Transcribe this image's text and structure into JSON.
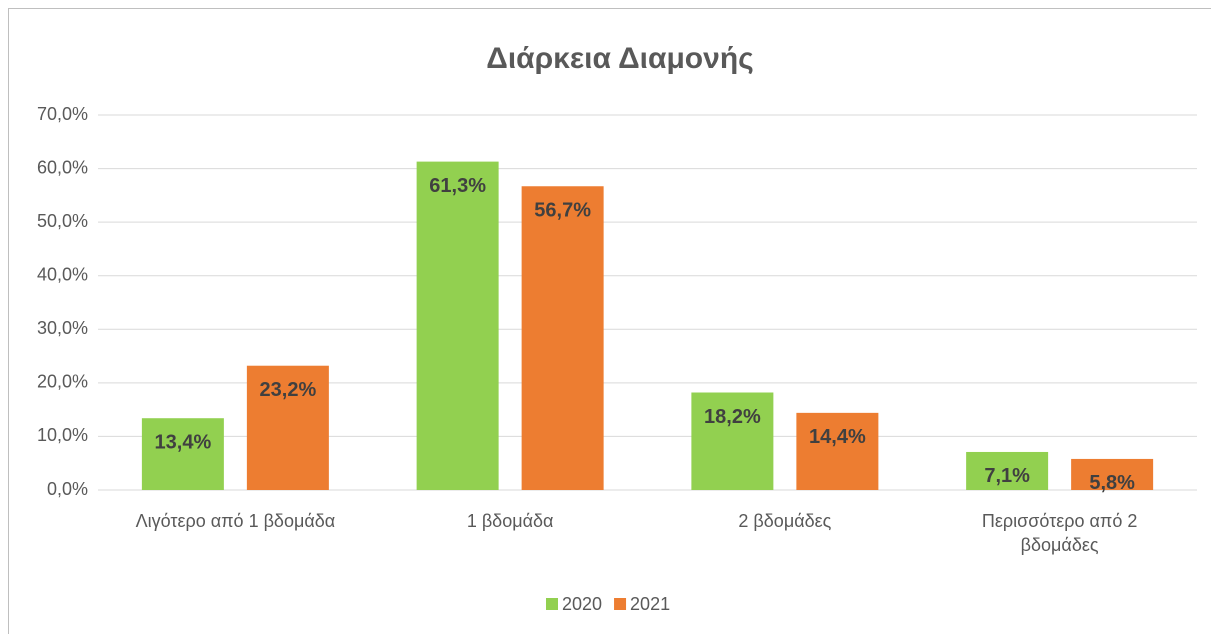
{
  "chart_data": {
    "type": "bar",
    "title": "Διάρκεια Διαμονής",
    "categories": [
      "Λιγότερο από 1 βδομάδα",
      "1 βδομάδα",
      "2 βδομάδες",
      "Περισσότερο από 2 βδομάδες"
    ],
    "series": [
      {
        "name": "2020",
        "color": "#92d050",
        "values": [
          13.4,
          61.3,
          18.2,
          7.1
        ],
        "value_labels": [
          "13,4%",
          "61,3%",
          "18,2%",
          "7,1%"
        ]
      },
      {
        "name": "2021",
        "color": "#ed7d31",
        "values": [
          23.2,
          56.7,
          14.4,
          5.8
        ],
        "value_labels": [
          "23,2%",
          "56,7%",
          "14,4%",
          "5,8%"
        ]
      }
    ],
    "ylim": [
      0,
      70
    ],
    "yticks": [
      {
        "value": 0,
        "label": "0,0%"
      },
      {
        "value": 10,
        "label": "10,0%"
      },
      {
        "value": 20,
        "label": "20,0%"
      },
      {
        "value": 30,
        "label": "30,0%"
      },
      {
        "value": 40,
        "label": "40,0%"
      },
      {
        "value": 50,
        "label": "50,0%"
      },
      {
        "value": 60,
        "label": "60,0%"
      },
      {
        "value": 70,
        "label": "70,0%"
      }
    ],
    "grid": true,
    "legend": "bottom"
  }
}
